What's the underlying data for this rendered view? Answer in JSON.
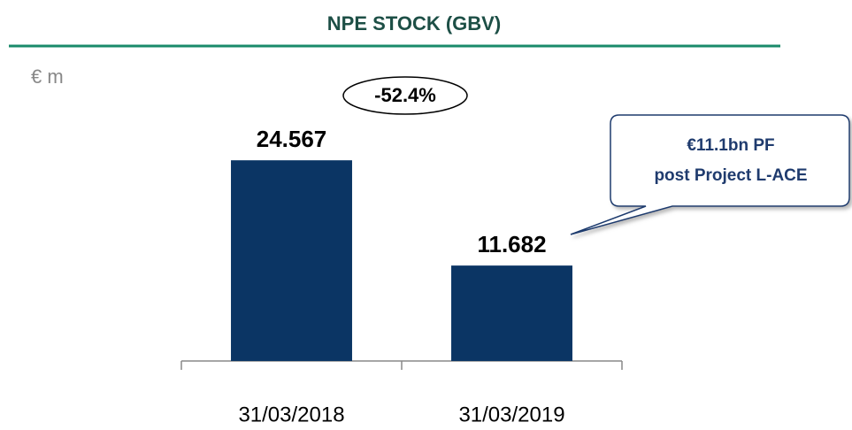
{
  "chart_data": {
    "type": "bar",
    "title": "NPE STOCK (GBV)",
    "unit": "€ m",
    "categories": [
      "31/03/2018",
      "31/03/2019"
    ],
    "values": [
      24567,
      11682
    ],
    "value_labels": [
      "24.567",
      "11.682"
    ],
    "color": "#0b3564",
    "ylim": [
      0,
      30000
    ],
    "annotations": [
      "-52.4%",
      "€11.1bn PF",
      "post Project L-ACE"
    ]
  }
}
